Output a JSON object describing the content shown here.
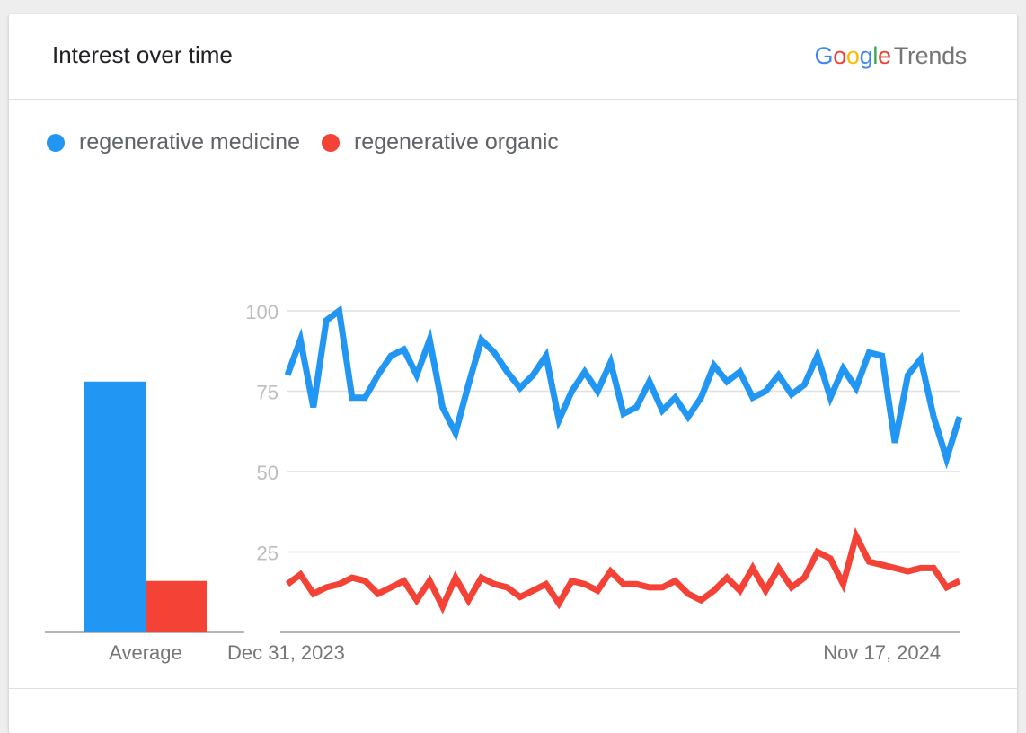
{
  "header": {
    "title": "Interest over time",
    "brand": {
      "word": "Google",
      "suffix": "Trends"
    }
  },
  "colors": {
    "google_blue": "#4285F4",
    "google_red": "#EA4335",
    "google_yellow": "#FBBC05",
    "google_green": "#34A853"
  },
  "chart_data": {
    "type": "line",
    "legend_position": "top-left",
    "grid": true,
    "ylim": [
      0,
      100
    ],
    "yticks": [
      25,
      50,
      75,
      100
    ],
    "xtick_labels": [
      {
        "index": 0,
        "label": "Dec 31, 2023"
      },
      {
        "index": 46,
        "label": "Nov 17, 2024"
      }
    ],
    "x_start": "2023-12-31",
    "x_end": "2024-12-29",
    "average_label": "Average",
    "series": [
      {
        "name": "regenerative medicine",
        "color": "#2196F3",
        "average": 78,
        "values": [
          80,
          91,
          70,
          97,
          100,
          73,
          73,
          80,
          86,
          88,
          80,
          91,
          70,
          62,
          77,
          91,
          87,
          81,
          76,
          80,
          86,
          66,
          75,
          81,
          75,
          84,
          68,
          70,
          78,
          69,
          73,
          67,
          73,
          83,
          78,
          81,
          73,
          75,
          80,
          74,
          77,
          86,
          73,
          82,
          76,
          87,
          86,
          59,
          80,
          85,
          67,
          54,
          67
        ]
      },
      {
        "name": "regenerative organic",
        "color": "#F44336",
        "average": 16,
        "values": [
          15,
          18,
          12,
          14,
          15,
          17,
          16,
          12,
          14,
          16,
          10,
          16,
          8,
          17,
          10,
          17,
          15,
          14,
          11,
          13,
          15,
          9,
          16,
          15,
          13,
          19,
          15,
          15,
          14,
          14,
          16,
          12,
          10,
          13,
          17,
          13,
          20,
          13,
          20,
          14,
          17,
          25,
          23,
          15,
          30,
          22,
          21,
          20,
          19,
          20,
          20,
          14,
          16
        ]
      }
    ]
  }
}
